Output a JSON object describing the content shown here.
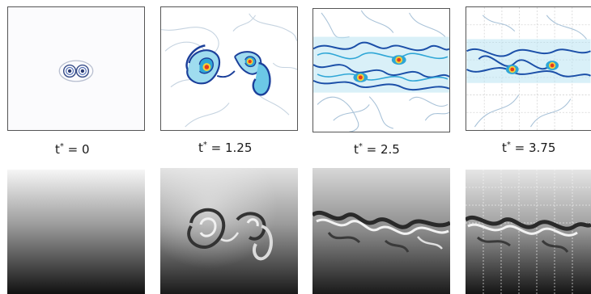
{
  "time_labels": [
    {
      "var": "t",
      "sup": "*",
      "rest": " = 0"
    },
    {
      "var": "t",
      "sup": "*",
      "rest": " = 1.25"
    },
    {
      "var": "t",
      "sup": "*",
      "rest": " = 2.5"
    },
    {
      "var": "t",
      "sup": "*",
      "rest": " = 3.75"
    }
  ],
  "colors": {
    "contour_dark": "#1b3f9a",
    "contour_mid": "#2ea6d6",
    "contour_light": "#8fd6ea",
    "core_red": "#e63a1e",
    "core_yellow": "#f1d23a",
    "frame": "#555555"
  }
}
